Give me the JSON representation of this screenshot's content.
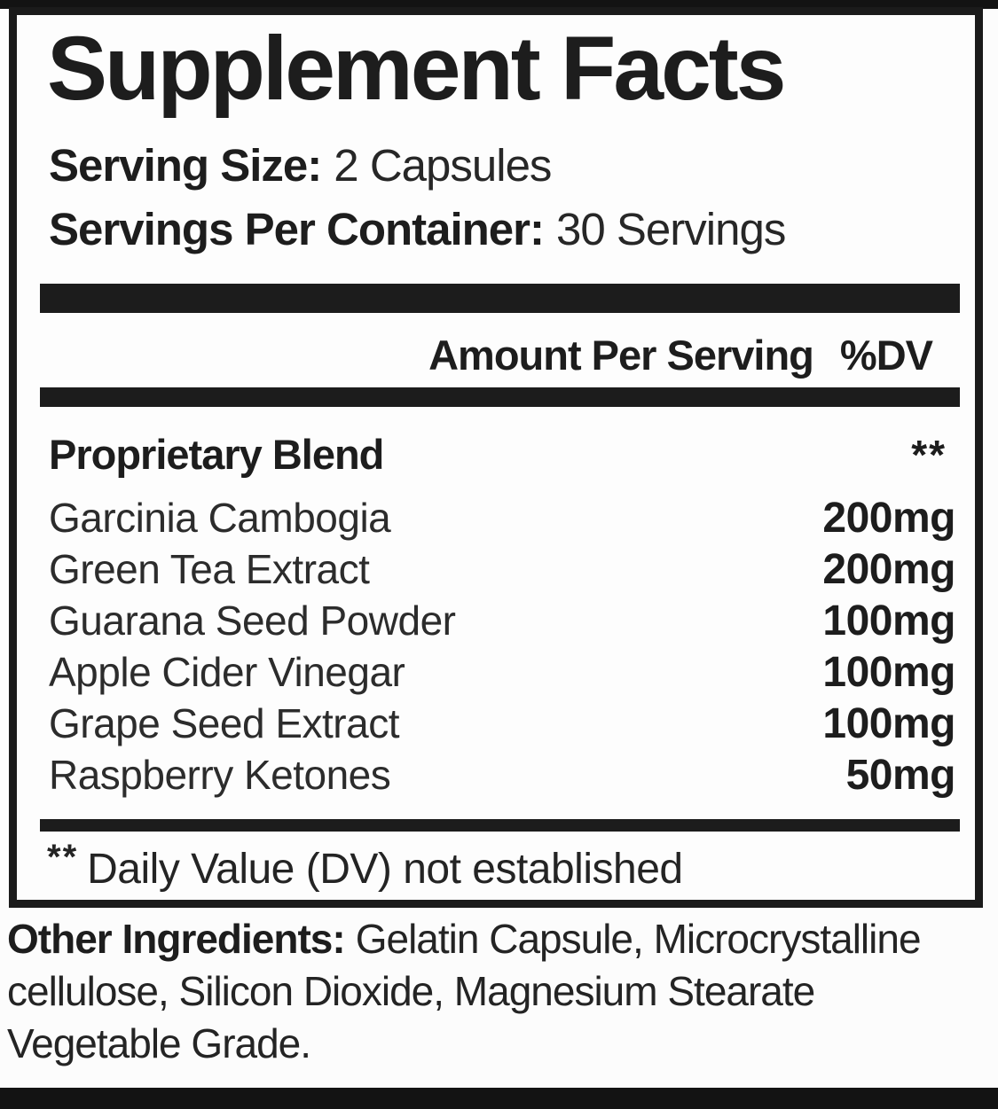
{
  "panel": {
    "title": "Supplement Facts",
    "serving_size": {
      "label": "Serving Size:",
      "value": "2 Capsules"
    },
    "servings_per_container": {
      "label": "Servings Per Container:",
      "value": "30 Servings"
    },
    "header": {
      "amount": "Amount Per Serving",
      "dv": "%DV"
    },
    "proprietary_blend": {
      "name": "Proprietary Blend",
      "dv": "**"
    },
    "ingredients": [
      {
        "name": "Garcinia Cambogia",
        "amount": "200mg"
      },
      {
        "name": "Green Tea Extract",
        "amount": "200mg"
      },
      {
        "name": "Guarana Seed Powder",
        "amount": "100mg"
      },
      {
        "name": "Apple Cider Vinegar",
        "amount": "100mg"
      },
      {
        "name": "Grape Seed Extract",
        "amount": "100mg"
      },
      {
        "name": "Raspberry Ketones",
        "amount": "50mg"
      }
    ],
    "footnote": {
      "symbol": "**",
      "text": "Daily Value (DV) not established"
    }
  },
  "other_ingredients": {
    "label": "Other Ingredients:",
    "line1": "Gelatin Capsule, Microcrystalline",
    "line2": "cellulose, Silicon Dioxide, Magnesium Stearate",
    "line3": "Vegetable Grade."
  },
  "colors": {
    "ink": "#1c1c1c",
    "bar": "#1c1c1c",
    "background": "#fcfcfc",
    "strip": "#131313"
  }
}
